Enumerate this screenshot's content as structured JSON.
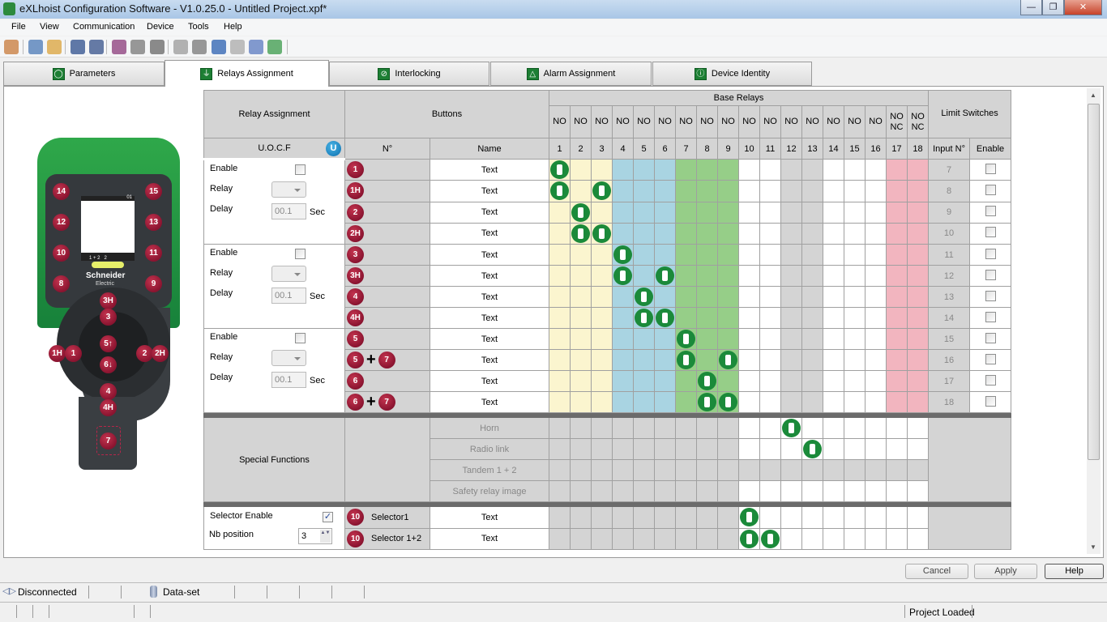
{
  "window": {
    "title": "eXLhoist Configuration Software - V1.0.25.0 - Untitled Project.xpf*",
    "minimize": "—",
    "maximize": "❐",
    "close": "✕"
  },
  "menu": [
    "File",
    "View",
    "Communication",
    "Device",
    "Tools",
    "Help"
  ],
  "toolbar": [
    "home-icon",
    "new-project-icon",
    "open-folder-icon",
    "save-icon",
    "save-all-icon",
    "page-setup-icon",
    "print-preview-icon",
    "print-icon",
    "alert-icon",
    "settings-gear-icon",
    "merge-icon",
    "split-icon",
    "upload-to-device-icon",
    "download-from-device-icon"
  ],
  "tabs": [
    {
      "label": "Parameters",
      "icon": "◯"
    },
    {
      "label": "Relays Assignment",
      "icon": "⏚",
      "active": true
    },
    {
      "label": "Interlocking",
      "icon": "⊘"
    },
    {
      "label": "Alarm Assignment",
      "icon": "△"
    },
    {
      "label": "Device Identity",
      "icon": "ⓘ"
    }
  ],
  "device": {
    "brand": "Schneider",
    "brand_sub": "Electric",
    "screen_top": "01",
    "screen_bottom": "1 + 2   2",
    "buttons": [
      "14",
      "15",
      "12",
      "13",
      "10",
      "11",
      "8",
      "9",
      "3H",
      "3",
      "1H",
      "1",
      "5↑",
      "6↓",
      "2",
      "2H",
      "4",
      "4H",
      "7"
    ]
  },
  "grid": {
    "h_relay_assignment": "Relay Assignment",
    "h_buttons": "Buttons",
    "h_base_relays": "Base Relays",
    "h_limit": "Limit Switches",
    "h_uocf": "U.O.C.F",
    "uocf_icon": "U",
    "h_no": "N°",
    "h_name": "Name",
    "h_input": "Input N°",
    "h_enable": "Enable",
    "relay_types": [
      "NO",
      "NO",
      "NO",
      "NO",
      "NO",
      "NO",
      "NO",
      "NO",
      "NO",
      "NO",
      "NO",
      "NO",
      "NO",
      "NO",
      "NO",
      "NO",
      "NO NC",
      "NO NC"
    ],
    "relay_numbers": [
      "1",
      "2",
      "3",
      "4",
      "5",
      "6",
      "7",
      "8",
      "9",
      "10",
      "11",
      "12",
      "13",
      "14",
      "15",
      "16",
      "17",
      "18"
    ],
    "relay_colors": [
      "yel",
      "yel",
      "yel",
      "blu",
      "blu",
      "blu",
      "grn",
      "grn",
      "grn",
      "white",
      "white",
      "gray",
      "gray",
      "white",
      "white",
      "white",
      "pnk",
      "pnk"
    ],
    "groups": [
      {
        "enable_label": "Enable",
        "enable": false,
        "relay_label": "Relay",
        "relay_value": "",
        "delay_label": "Delay",
        "delay_value": "00.1",
        "unit": "Sec"
      },
      {
        "enable_label": "Enable",
        "enable": false,
        "relay_label": "Relay",
        "relay_value": "",
        "delay_label": "Delay",
        "delay_value": "00.1",
        "unit": "Sec"
      },
      {
        "enable_label": "Enable",
        "enable": false,
        "relay_label": "Relay",
        "relay_value": "",
        "delay_label": "Delay",
        "delay_value": "00.1",
        "unit": "Sec"
      }
    ],
    "rows": [
      {
        "buttons": [
          "1"
        ],
        "name": "Text",
        "relays": [
          1
        ],
        "input": "7",
        "enabled": false
      },
      {
        "buttons": [
          "1H"
        ],
        "name": "Text",
        "relays": [
          1,
          3
        ],
        "input": "8",
        "enabled": false
      },
      {
        "buttons": [
          "2"
        ],
        "name": "Text",
        "relays": [
          2
        ],
        "input": "9",
        "enabled": false
      },
      {
        "buttons": [
          "2H"
        ],
        "name": "Text",
        "relays": [
          2,
          3
        ],
        "input": "10",
        "enabled": false
      },
      {
        "buttons": [
          "3"
        ],
        "name": "Text",
        "relays": [
          4
        ],
        "input": "11",
        "enabled": false
      },
      {
        "buttons": [
          "3H"
        ],
        "name": "Text",
        "relays": [
          4,
          6
        ],
        "input": "12",
        "enabled": false
      },
      {
        "buttons": [
          "4"
        ],
        "name": "Text",
        "relays": [
          5
        ],
        "input": "13",
        "enabled": false
      },
      {
        "buttons": [
          "4H"
        ],
        "name": "Text",
        "relays": [
          5,
          6
        ],
        "input": "14",
        "enabled": false
      },
      {
        "buttons": [
          "5"
        ],
        "name": "Text",
        "relays": [
          7
        ],
        "input": "15",
        "enabled": false
      },
      {
        "buttons": [
          "5",
          "7"
        ],
        "name": "Text",
        "relays": [
          7,
          9
        ],
        "input": "16",
        "enabled": false
      },
      {
        "buttons": [
          "6"
        ],
        "name": "Text",
        "relays": [
          8
        ],
        "input": "17",
        "enabled": false
      },
      {
        "buttons": [
          "6",
          "7"
        ],
        "name": "Text",
        "relays": [
          8,
          9
        ],
        "input": "18",
        "enabled": false
      }
    ],
    "special_title": "Special Functions",
    "special": [
      {
        "name": "Horn",
        "relays": [
          12
        ],
        "editable": true
      },
      {
        "name": "Radio link",
        "relays": [
          13
        ],
        "editable": true
      },
      {
        "name": "Tandem 1 + 2",
        "relays": [],
        "editable": false
      },
      {
        "name": "Safety relay image",
        "relays": [],
        "editable": true
      }
    ],
    "selector": {
      "enable_label": "Selector Enable",
      "enabled": true,
      "nb_label": "Nb position",
      "nb_value": "3",
      "rows": [
        {
          "button": "10",
          "label": "Selector1",
          "name": "Text",
          "relays": [
            10
          ]
        },
        {
          "button": "10",
          "label": "Selector 1+2",
          "name": "Text",
          "relays": [
            10,
            11
          ]
        }
      ]
    }
  },
  "actions": {
    "cancel": "Cancel",
    "apply": "Apply",
    "help": "Help"
  },
  "status": {
    "connection": "Disconnected",
    "dataset": "Data-set",
    "project": "Project Loaded"
  }
}
